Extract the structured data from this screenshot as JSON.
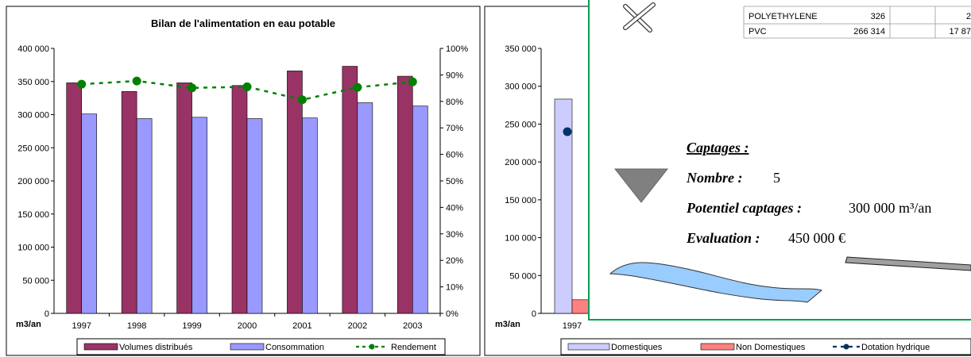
{
  "chart_data": [
    {
      "type": "bar",
      "title": "Bilan de l'alimentation en eau potable",
      "categories": [
        "1997",
        "1998",
        "1999",
        "2000",
        "2001",
        "2002",
        "2003"
      ],
      "series": [
        {
          "name": "Volumes distribués",
          "values": [
            348000,
            335000,
            348000,
            344000,
            366000,
            373000,
            358000
          ],
          "color": "#993366"
        },
        {
          "name": "Consommation",
          "values": [
            301000,
            294000,
            296000,
            294000,
            295000,
            318000,
            313000
          ],
          "color": "#9999ff"
        }
      ],
      "secondary_series": {
        "name": "Rendement",
        "type": "line",
        "values": [
          0.865,
          0.877,
          0.851,
          0.855,
          0.806,
          0.853,
          0.874
        ],
        "color": "#008000"
      },
      "y_unit_label": "m3/an",
      "ylim": [
        0,
        400000
      ],
      "yticks": [
        "0",
        "50 000",
        "100 000",
        "150 000",
        "200 000",
        "250 000",
        "300 000",
        "350 000",
        "400 000"
      ],
      "y2lim": [
        0,
        1
      ],
      "y2ticks": [
        "0%",
        "10%",
        "20%",
        "30%",
        "40%",
        "50%",
        "60%",
        "70%",
        "80%",
        "90%",
        "100%"
      ],
      "grid": false,
      "legend_position": "bottom"
    },
    {
      "type": "bar",
      "categories": [
        "1997"
      ],
      "series": [
        {
          "name": "Domestiques",
          "values": [
            283000
          ],
          "color": "#ccccff"
        },
        {
          "name": "Non Domestiques",
          "values": [
            18000
          ],
          "color": "#ff8080"
        }
      ],
      "secondary_series": {
        "name": "Dotation hydrique",
        "type": "line",
        "values": [
          240000
        ],
        "color": "#003366"
      },
      "y_unit_label": "m3/an",
      "ylim": [
        0,
        350000
      ],
      "yticks": [
        "0",
        "50 000",
        "100 000",
        "150 000",
        "200 000",
        "250 000",
        "300 000",
        "350 000"
      ],
      "grid": false,
      "legend_position": "bottom"
    }
  ],
  "overlay": {
    "table_rows": [
      {
        "material": "POLYETHYLENE",
        "value": "326",
        "extra": "2"
      },
      {
        "material": "PVC",
        "value": "266 314",
        "extra": "17 87"
      }
    ],
    "captages": {
      "heading": "Captages :",
      "nombre_label": "Nombre :",
      "nombre_value": "5",
      "potentiel_label": "Potentiel captages :",
      "potentiel_value": "300 000 m³/an",
      "evaluation_label": "Evaluation :",
      "evaluation_value": "450 000 €"
    },
    "colors": {
      "border": "#00a050",
      "river": "#99ccff",
      "pipe": "#a0a0a0",
      "triangle": "#808080"
    },
    "icons": [
      "cross-icon",
      "triangle-icon",
      "river-icon",
      "pipe-icon"
    ]
  }
}
